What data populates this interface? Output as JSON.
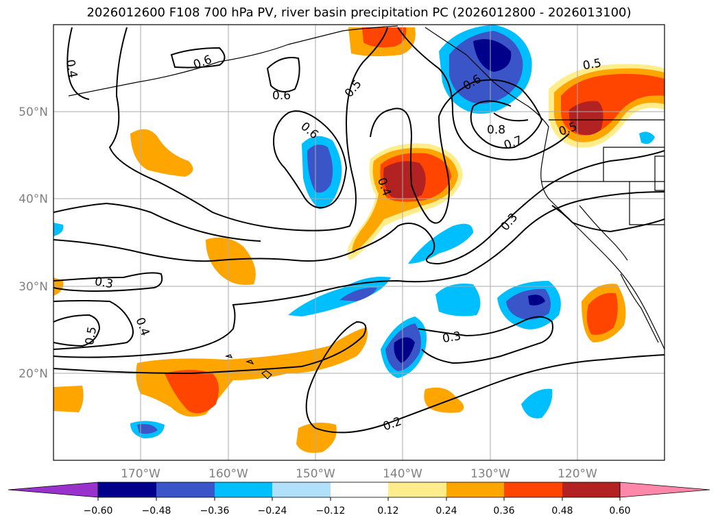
{
  "title": "2026012600 F108 700 hPa PV, river basin precipitation PC (2026012800 - 2026013100)",
  "lat_labels": [
    "50°N",
    "40°N",
    "30°N",
    "20°N"
  ],
  "lon_labels": [
    "170°W",
    "160°W",
    "150°W",
    "140°W",
    "130°W",
    "120°W"
  ],
  "contour_labels": [
    "0.4",
    "0.6",
    "0.6",
    "0.6",
    "0.5",
    "0.5",
    "0.6",
    "0.8",
    "0.7",
    "0.5",
    "0.4",
    "0.3",
    "0.3",
    "0.5",
    "0.4",
    "0.3",
    "0.2"
  ],
  "colorbar": {
    "ticks": [
      "−0.60",
      "−0.48",
      "−0.36",
      "−0.24",
      "−0.12",
      "0.12",
      "0.24",
      "0.36",
      "0.48",
      "0.60"
    ],
    "colors": [
      "#9932cc",
      "#00008b",
      "#3a55c8",
      "#00bfff",
      "#b0e0fa",
      "#ffffff",
      "#ffec8b",
      "#ffa500",
      "#ff4500",
      "#b22222",
      "#ff88aa"
    ]
  }
}
